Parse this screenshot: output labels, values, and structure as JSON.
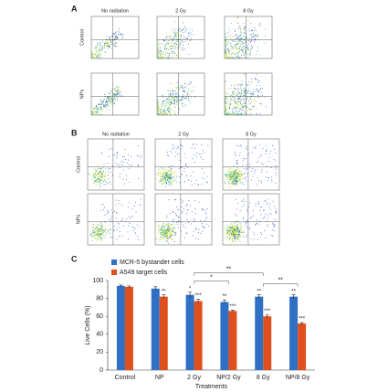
{
  "panel_a": {
    "label": "A",
    "columns": [
      "No radiation",
      "2 Gy",
      "8 Gy"
    ],
    "rows": [
      "Control",
      "NPs"
    ]
  },
  "panel_b": {
    "label": "B",
    "columns": [
      "No radiation",
      "2 Gy",
      "8 Gy"
    ],
    "rows": [
      "Control",
      "NPs"
    ]
  },
  "panel_c_label": "C",
  "chart_data": {
    "type": "bar",
    "x_label": "Treatments",
    "y_label": "Live Cells (%)",
    "categories": [
      "Control",
      "NP",
      "2 Gy",
      "NP/2 Gy",
      "8 Gy",
      "NP/8 Gy"
    ],
    "series": [
      {
        "name": "MCR-5 bystander cells",
        "color": "#2f6fc4",
        "values": [
          94,
          91,
          84,
          76,
          82,
          82
        ],
        "errors": [
          1,
          2,
          3,
          2,
          2,
          2
        ],
        "significance": [
          null,
          null,
          "*",
          "**",
          "**",
          "**"
        ]
      },
      {
        "name": "A549 target cells",
        "color": "#e0501c",
        "values": [
          93,
          82,
          77,
          66,
          60,
          52
        ],
        "errors": [
          1,
          2,
          2,
          1,
          2,
          1
        ],
        "significance": [
          null,
          "**",
          "***",
          "***",
          "***",
          "***"
        ]
      }
    ],
    "brackets": [
      {
        "label": "*",
        "from": "2 Gy",
        "to": "NP/2 Gy"
      },
      {
        "label": "**",
        "from": "8 Gy",
        "to": "NP/8 Gy"
      },
      {
        "label": "**",
        "from": "2 Gy",
        "to": "8 Gy"
      }
    ],
    "ylim": [
      0,
      100
    ],
    "yticks": [
      0,
      20,
      40,
      60,
      80,
      100
    ],
    "legend": "upper left"
  }
}
